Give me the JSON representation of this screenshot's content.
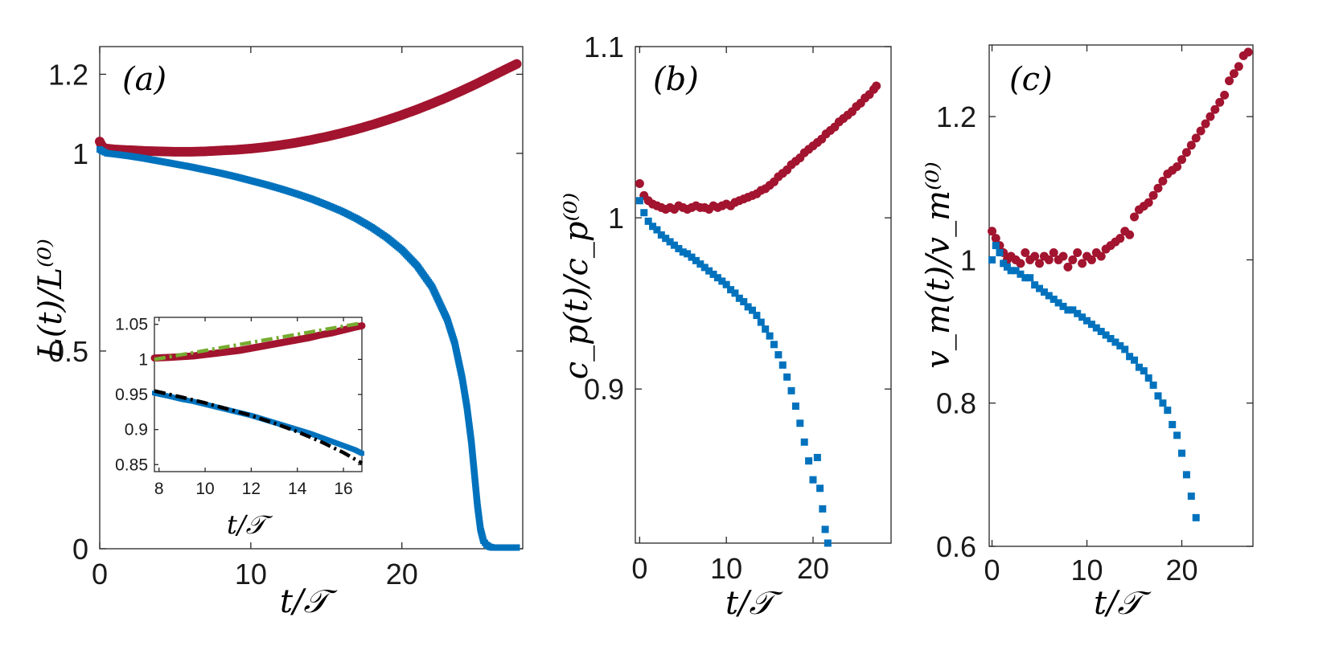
{
  "colors": {
    "red_series": "#A2142F",
    "blue_series": "#0072BD",
    "green_fit": "#77AC30",
    "black_fit": "#000000"
  },
  "chart_data": [
    {
      "id": "a",
      "type": "scatter",
      "panel_label": "(a)",
      "xlabel": "t/𝒯",
      "ylabel": "L(t)/L⁽⁰⁾",
      "xlim": [
        0,
        28
      ],
      "ylim": [
        0,
        1.27
      ],
      "xticks": [
        0,
        10,
        20
      ],
      "xtick_labels": [
        "0",
        "10",
        "20"
      ],
      "yticks": [
        0,
        0.5,
        1,
        1.2
      ],
      "ytick_labels": [
        "0",
        "0.5",
        "1",
        "1.2"
      ],
      "series": [
        {
          "name": "red",
          "marker": "circle",
          "x": [
            0,
            0.2,
            0.5,
            1,
            2,
            3,
            4,
            5,
            6,
            7,
            8,
            9,
            10,
            11,
            12,
            13,
            14,
            15,
            16,
            17,
            18,
            19,
            20,
            21,
            22,
            23,
            24,
            25,
            26,
            27,
            27.6
          ],
          "y": [
            1.03,
            1.015,
            1.012,
            1.01,
            1.008,
            1.006,
            1.005,
            1.004,
            1.004,
            1.005,
            1.007,
            1.009,
            1.012,
            1.016,
            1.021,
            1.027,
            1.034,
            1.042,
            1.051,
            1.061,
            1.072,
            1.084,
            1.097,
            1.111,
            1.126,
            1.142,
            1.159,
            1.177,
            1.196,
            1.215,
            1.226
          ]
        },
        {
          "name": "blue",
          "marker": "square",
          "x": [
            0,
            0.2,
            0.5,
            1,
            2,
            3,
            4,
            5,
            6,
            7,
            8,
            9,
            10,
            11,
            12,
            13,
            14,
            15,
            16,
            17,
            18,
            19,
            20,
            21,
            22,
            23,
            23.5,
            24,
            24.3,
            24.6,
            24.8,
            25.0,
            25.2,
            25.4,
            25.6,
            25.8,
            26,
            27,
            27.6
          ],
          "y": [
            1.01,
            1.005,
            1.0,
            0.998,
            0.993,
            0.987,
            0.98,
            0.973,
            0.966,
            0.958,
            0.95,
            0.941,
            0.931,
            0.921,
            0.91,
            0.898,
            0.885,
            0.87,
            0.854,
            0.835,
            0.813,
            0.787,
            0.756,
            0.716,
            0.662,
            0.58,
            0.52,
            0.43,
            0.36,
            0.27,
            0.19,
            0.11,
            0.05,
            0.02,
            0.01,
            0.005,
            0.003,
            0.003,
            0.003
          ]
        }
      ],
      "inset": {
        "xlabel": "t/𝒯",
        "xlim": [
          7.8,
          16.8
        ],
        "ylim": [
          0.84,
          1.06
        ],
        "xticks": [
          8,
          10,
          12,
          14,
          16
        ],
        "xtick_labels": [
          "8",
          "10",
          "12",
          "14",
          "16"
        ],
        "yticks": [
          0.85,
          0.9,
          0.95,
          1,
          1.05
        ],
        "ytick_labels": [
          "0.85",
          "0.9",
          "0.95",
          "1",
          "1.05"
        ],
        "series": [
          {
            "name": "red",
            "marker": "circle",
            "x": [
              7.8,
              8.5,
              9,
              9.5,
              10,
              10.5,
              11,
              11.5,
              12,
              12.5,
              13,
              13.5,
              14,
              14.5,
              15,
              15.5,
              16,
              16.5,
              16.8
            ],
            "y": [
              1.002,
              1.003,
              1.004,
              1.005,
              1.007,
              1.009,
              1.011,
              1.013,
              1.016,
              1.019,
              1.022,
              1.025,
              1.028,
              1.031,
              1.035,
              1.038,
              1.042,
              1.046,
              1.048
            ]
          },
          {
            "name": "blue",
            "marker": "square",
            "x": [
              7.8,
              8.5,
              9,
              9.5,
              10,
              10.5,
              11,
              11.5,
              12,
              12.5,
              13,
              13.5,
              14,
              14.5,
              15,
              15.5,
              16,
              16.5,
              16.8
            ],
            "y": [
              0.952,
              0.947,
              0.943,
              0.94,
              0.936,
              0.932,
              0.928,
              0.924,
              0.92,
              0.915,
              0.91,
              0.905,
              0.9,
              0.895,
              0.889,
              0.883,
              0.877,
              0.871,
              0.866
            ]
          },
          {
            "name": "green-fit",
            "style": "dashdot",
            "x": [
              7.8,
              16.8
            ],
            "y": [
              1.0,
              1.052
            ]
          },
          {
            "name": "black-fit",
            "style": "dashdot",
            "x": [
              7.8,
              9,
              10,
              11,
              12,
              13,
              14,
              15,
              16,
              16.8
            ],
            "y": [
              0.955,
              0.946,
              0.938,
              0.929,
              0.92,
              0.909,
              0.897,
              0.883,
              0.867,
              0.852
            ]
          }
        ]
      }
    },
    {
      "id": "b",
      "type": "scatter",
      "panel_label": "(b)",
      "xlabel": "t/𝒯",
      "ylabel": "c_p(t)/c_p⁽⁰⁾",
      "xlim": [
        -0.5,
        29
      ],
      "ylim": [
        0.81,
        1.1
      ],
      "xticks": [
        0,
        10,
        20
      ],
      "xtick_labels": [
        "0",
        "10",
        "20"
      ],
      "yticks": [
        0.9,
        1,
        1.1
      ],
      "ytick_labels": [
        "0.9",
        "1",
        "1.1"
      ],
      "series": [
        {
          "name": "red",
          "marker": "circle",
          "x": [
            0,
            0.5,
            1,
            1.5,
            2,
            2.5,
            3,
            3.5,
            4,
            4.5,
            5,
            5.5,
            6,
            6.5,
            7,
            7.5,
            8,
            8.5,
            9,
            9.5,
            10,
            10.5,
            11,
            11.5,
            12,
            12.5,
            13,
            13.5,
            14,
            14.5,
            15,
            15.5,
            16,
            16.5,
            17,
            17.5,
            18,
            18.5,
            19,
            19.5,
            20,
            20.5,
            21,
            21.5,
            22,
            22.5,
            23,
            23.5,
            24,
            24.5,
            25,
            25.5,
            26,
            26.5,
            27,
            27.3
          ],
          "y": [
            1.02,
            1.013,
            1.01,
            1.008,
            1.007,
            1.006,
            1.005,
            1.006,
            1.005,
            1.007,
            1.006,
            1.005,
            1.006,
            1.007,
            1.006,
            1.006,
            1.005,
            1.007,
            1.006,
            1.007,
            1.008,
            1.007,
            1.009,
            1.01,
            1.011,
            1.012,
            1.013,
            1.014,
            1.016,
            1.017,
            1.019,
            1.021,
            1.024,
            1.026,
            1.028,
            1.031,
            1.033,
            1.035,
            1.038,
            1.04,
            1.042,
            1.044,
            1.046,
            1.049,
            1.051,
            1.053,
            1.056,
            1.058,
            1.06,
            1.062,
            1.065,
            1.067,
            1.07,
            1.072,
            1.075,
            1.077
          ]
        },
        {
          "name": "blue",
          "marker": "square",
          "x": [
            0,
            0.5,
            1,
            1.5,
            2,
            2.5,
            3,
            3.5,
            4,
            4.5,
            5,
            5.5,
            6,
            6.5,
            7,
            7.5,
            8,
            8.5,
            9,
            9.5,
            10,
            10.5,
            11,
            11.5,
            12,
            12.5,
            13,
            13.5,
            14,
            14.5,
            15,
            15.5,
            16,
            16.5,
            17,
            17.5,
            18,
            18.5,
            19,
            19.5,
            20,
            20.5,
            20.8,
            21.1,
            21.4,
            21.7
          ],
          "y": [
            1.01,
            1.003,
            0.998,
            0.995,
            0.993,
            0.99,
            0.988,
            0.986,
            0.984,
            0.982,
            0.98,
            0.979,
            0.977,
            0.975,
            0.973,
            0.971,
            0.969,
            0.967,
            0.965,
            0.963,
            0.961,
            0.958,
            0.956,
            0.953,
            0.951,
            0.948,
            0.946,
            0.943,
            0.939,
            0.935,
            0.931,
            0.926,
            0.92,
            0.914,
            0.907,
            0.899,
            0.89,
            0.88,
            0.869,
            0.858,
            0.847,
            0.86,
            0.842,
            0.83,
            0.818,
            0.81
          ]
        }
      ]
    },
    {
      "id": "c",
      "type": "scatter",
      "panel_label": "(c)",
      "xlabel": "t/𝒯",
      "ylabel": "v_m(t)/v_m⁽⁰⁾",
      "xlim": [
        -0.3,
        27.5
      ],
      "ylim": [
        0.6,
        1.3
      ],
      "xticks": [
        0,
        10,
        20
      ],
      "xtick_labels": [
        "0",
        "10",
        "20"
      ],
      "yticks": [
        0.6,
        0.8,
        1,
        1.2
      ],
      "ytick_labels": [
        "0.6",
        "0.8",
        "1",
        "1.2"
      ],
      "series": [
        {
          "name": "red",
          "marker": "circle",
          "x": [
            0,
            0.4,
            0.8,
            1.2,
            1.6,
            2,
            2.5,
            3,
            3.5,
            4,
            4.5,
            5,
            5.5,
            6,
            6.5,
            7,
            7.5,
            8,
            8.5,
            9,
            9.5,
            10,
            10.5,
            11,
            11.5,
            12,
            12.5,
            13,
            13.5,
            14,
            14.5,
            15,
            15.5,
            16,
            16.5,
            17,
            17.5,
            18,
            18.5,
            19,
            19.5,
            20,
            20.5,
            21,
            21.5,
            22,
            22.5,
            23,
            23.5,
            24,
            24.5,
            25,
            25.5,
            26,
            26.5,
            27
          ],
          "y": [
            1.04,
            1.03,
            1.02,
            1.01,
            1.0,
            1.005,
            1.0,
            0.995,
            1.01,
            1.0,
            1.005,
            0.995,
            1.005,
            1.0,
            1.01,
            1.0,
            1.005,
            0.99,
            1.0,
            1.01,
            0.995,
            1.005,
            1.0,
            1.01,
            1.005,
            1.015,
            1.02,
            1.025,
            1.03,
            1.04,
            1.035,
            1.06,
            1.07,
            1.075,
            1.08,
            1.09,
            1.1,
            1.11,
            1.12,
            1.125,
            1.13,
            1.14,
            1.15,
            1.16,
            1.17,
            1.18,
            1.19,
            1.2,
            1.21,
            1.22,
            1.23,
            1.25,
            1.26,
            1.27,
            1.285,
            1.29
          ]
        },
        {
          "name": "blue",
          "marker": "square",
          "x": [
            0,
            0.4,
            0.8,
            1.2,
            1.6,
            2,
            2.5,
            3,
            3.5,
            4,
            4.5,
            5,
            5.5,
            6,
            6.5,
            7,
            7.5,
            8,
            8.5,
            9,
            9.5,
            10,
            10.5,
            11,
            11.5,
            12,
            12.5,
            13,
            13.5,
            14,
            14.5,
            15,
            15.5,
            16,
            16.5,
            17,
            17.5,
            18,
            18.5,
            19,
            19.5,
            20,
            20.5,
            21,
            21.5
          ],
          "y": [
            1.0,
            1.02,
            1.01,
            0.995,
            0.99,
            0.985,
            0.985,
            0.98,
            0.975,
            0.975,
            0.965,
            0.96,
            0.955,
            0.95,
            0.945,
            0.94,
            0.935,
            0.93,
            0.93,
            0.925,
            0.92,
            0.915,
            0.91,
            0.905,
            0.9,
            0.895,
            0.89,
            0.885,
            0.88,
            0.875,
            0.865,
            0.86,
            0.85,
            0.845,
            0.835,
            0.825,
            0.81,
            0.8,
            0.79,
            0.77,
            0.755,
            0.73,
            0.7,
            0.67,
            0.64
          ]
        }
      ]
    }
  ]
}
